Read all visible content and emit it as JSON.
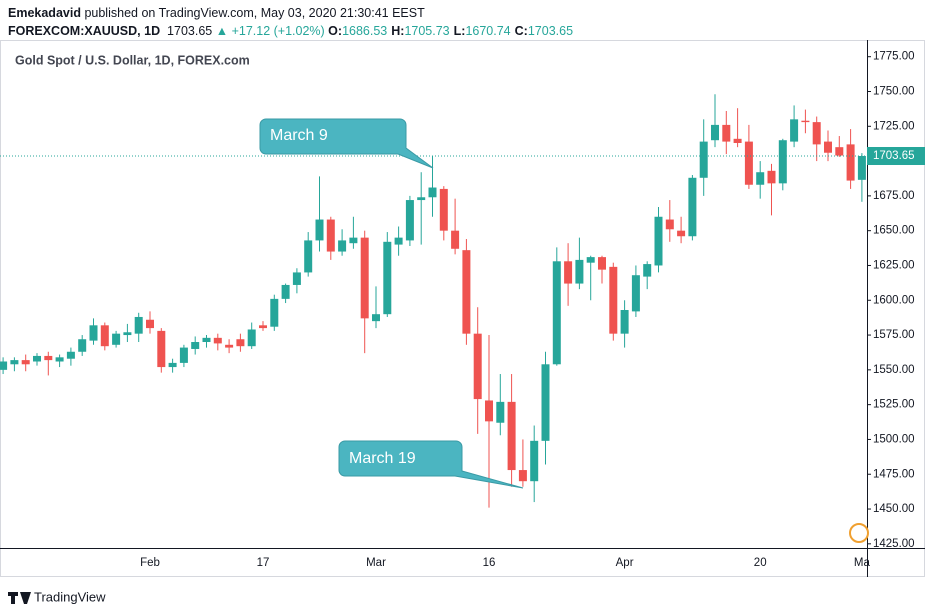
{
  "header": {
    "author": "Emekadavid",
    "published": "published on TradingView.com, May 03, 2020 21:30:41 EEST",
    "symbol": "FOREXCOM:XAUUSD, 1D",
    "price": "1703.65",
    "change": "▲ +17.12 (+1.02%)",
    "ohlc": [
      {
        "label": "O:",
        "value": "1686.53"
      },
      {
        "label": "H:",
        "value": "1705.73"
      },
      {
        "label": "L:",
        "value": "1670.74"
      },
      {
        "label": "C:",
        "value": "1703.65"
      }
    ]
  },
  "footer": {
    "brand": "TradingView"
  },
  "chart_data": {
    "type": "candlestick",
    "title": "Gold Spot / U.S. Dollar, 1D, FOREX.com",
    "up_color": "#26a69a",
    "down_color": "#ef5350",
    "categories": [
      null,
      null,
      null,
      null,
      null,
      null,
      null,
      null,
      null,
      null,
      null,
      null,
      null,
      "Feb",
      null,
      null,
      null,
      null,
      null,
      null,
      null,
      null,
      null,
      "17",
      null,
      null,
      null,
      null,
      null,
      null,
      null,
      null,
      null,
      "Mar",
      null,
      null,
      null,
      null,
      null,
      null,
      null,
      null,
      null,
      "16",
      null,
      null,
      null,
      null,
      null,
      null,
      null,
      null,
      null,
      null,
      null,
      "Apr",
      null,
      null,
      null,
      null,
      null,
      null,
      null,
      null,
      null,
      null,
      null,
      "20",
      null,
      null,
      null,
      null,
      null,
      null,
      null,
      null,
      "Ma"
    ],
    "open": [
      1550,
      1554,
      1557,
      1556,
      1560,
      1556,
      1558,
      1563,
      1571,
      1582,
      1568,
      1575,
      1576,
      1586,
      1578,
      1552,
      1555,
      1565,
      1570,
      1573,
      1568,
      1572,
      1567,
      1582,
      1581,
      1601,
      1611,
      1620,
      1643,
      1658,
      1635,
      1641,
      1645,
      1585,
      1590,
      1640,
      1643,
      1672,
      1674,
      1680,
      1650,
      1636,
      1576,
      1528,
      1512,
      1527,
      1478,
      1470,
      1499,
      1554,
      1628,
      1612,
      1627,
      1631,
      1624,
      1576,
      1592,
      1617,
      1625,
      1658,
      1650,
      1646,
      1688,
      1715,
      1726,
      1716,
      1714,
      1683,
      1693,
      1684,
      1714,
      1729,
      1728,
      1714,
      1710,
      1712,
      1686.53
    ],
    "high": [
      1559,
      1559,
      1561,
      1562,
      1563,
      1561,
      1566,
      1575,
      1587,
      1584,
      1578,
      1583,
      1591,
      1592,
      1580,
      1558,
      1568,
      1574,
      1575,
      1576,
      1572,
      1576,
      1584,
      1585,
      1604,
      1612,
      1623,
      1649,
      1689,
      1660,
      1651,
      1660,
      1650,
      1610,
      1649,
      1653,
      1675,
      1692,
      1704,
      1682,
      1673,
      1644,
      1595,
      1575,
      1547,
      1547,
      1500,
      1510,
      1563,
      1638,
      1641,
      1645,
      1632,
      1632,
      1627,
      1600,
      1625,
      1628,
      1667,
      1672,
      1660,
      1690,
      1730,
      1748,
      1736,
      1738,
      1726,
      1700,
      1698,
      1716,
      1740,
      1737,
      1732,
      1722,
      1718,
      1723,
      1705.73
    ],
    "low": [
      1547,
      1549,
      1549,
      1553,
      1546,
      1552,
      1553,
      1560,
      1568,
      1564,
      1566,
      1570,
      1570,
      1576,
      1548,
      1548,
      1552,
      1561,
      1566,
      1564,
      1562,
      1563,
      1565,
      1578,
      1578,
      1598,
      1605,
      1617,
      1635,
      1629,
      1632,
      1637,
      1562,
      1580,
      1588,
      1632,
      1639,
      1640,
      1660,
      1643,
      1633,
      1568,
      1504,
      1451,
      1503,
      1466,
      1466,
      1455,
      1482,
      1553,
      1596,
      1608,
      1600,
      1612,
      1571,
      1566,
      1588,
      1608,
      1620,
      1642,
      1641,
      1643,
      1675,
      1710,
      1705,
      1710,
      1680,
      1673,
      1661,
      1679,
      1710,
      1720,
      1700,
      1700,
      1703,
      1680,
      1670.74
    ],
    "close": [
      1556,
      1557,
      1554,
      1560,
      1557,
      1559,
      1563,
      1572,
      1582,
      1567,
      1576,
      1577,
      1588,
      1580,
      1552,
      1555,
      1566,
      1570,
      1573,
      1569,
      1566,
      1567,
      1579,
      1580,
      1601,
      1611,
      1620,
      1643,
      1658,
      1635,
      1643,
      1645,
      1587,
      1590,
      1642,
      1645,
      1672,
      1674,
      1681,
      1650,
      1637,
      1576,
      1529,
      1513,
      1527,
      1478,
      1470,
      1499,
      1554,
      1628,
      1612,
      1629,
      1631,
      1622,
      1576,
      1593,
      1618,
      1626,
      1660,
      1651,
      1646,
      1688,
      1714,
      1726,
      1714,
      1713,
      1683,
      1692,
      1684,
      1715,
      1730,
      1728,
      1712,
      1706,
      1704,
      1686,
      1703.65
    ],
    "ylim": [
      1422,
      1787
    ],
    "yticks": [
      {
        "value": 1425,
        "label": "1425.00"
      },
      {
        "value": 1450,
        "label": "1450.00"
      },
      {
        "value": 1475,
        "label": "1475.00"
      },
      {
        "value": 1500,
        "label": "1500.00"
      },
      {
        "value": 1525,
        "label": "1525.00"
      },
      {
        "value": 1550,
        "label": "1550.00"
      },
      {
        "value": 1575,
        "label": "1575.00"
      },
      {
        "value": 1600,
        "label": "1600.00"
      },
      {
        "value": 1625,
        "label": "1625.00"
      },
      {
        "value": 1650,
        "label": "1650.00"
      },
      {
        "value": 1675,
        "label": "1675.00"
      },
      {
        "value": 1700,
        "label": "1700.00"
      },
      {
        "value": 1725,
        "label": "1725.00"
      },
      {
        "value": 1750,
        "label": "1750.00"
      },
      {
        "value": 1775,
        "label": "1775.00"
      }
    ],
    "last_price_label": "1703.65",
    "annotations": [
      "March 9",
      "March 19"
    ],
    "grid": false
  }
}
